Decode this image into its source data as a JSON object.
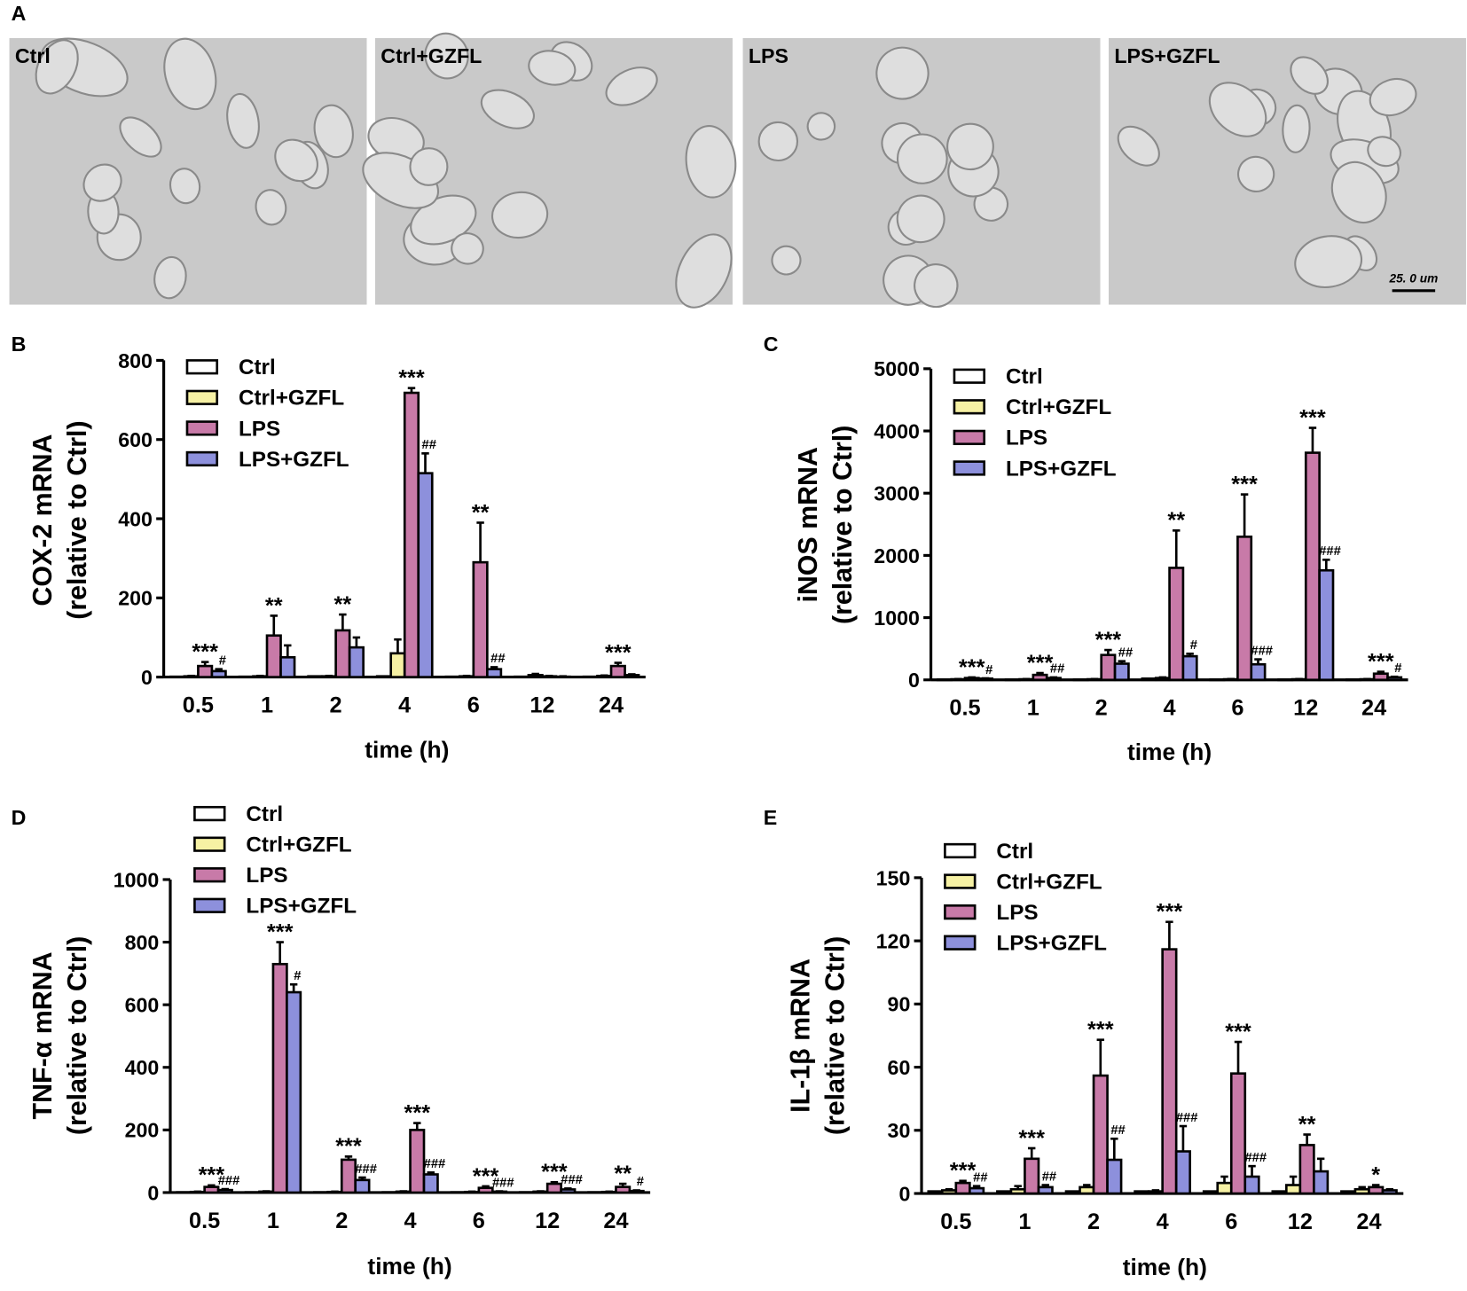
{
  "panel_labels": [
    "A",
    "B",
    "C",
    "D",
    "E"
  ],
  "images": [
    {
      "label": "Ctrl"
    },
    {
      "label": "Ctrl+GZFL"
    },
    {
      "label": "LPS"
    },
    {
      "label": "LPS+GZFL"
    }
  ],
  "scale_bar": "25. 0 um",
  "chart_data": [
    {
      "type": "bar",
      "ylabel": [
        "COX-2 mRNA",
        "(relative to Ctrl)"
      ],
      "xlabel": "time (h)",
      "categories": [
        "0.5",
        "1",
        "2",
        "4",
        "6",
        "12",
        "24"
      ],
      "ylim": [
        0,
        800
      ],
      "yticks": [
        0,
        200,
        400,
        600,
        800
      ],
      "series": [
        {
          "name": "Ctrl",
          "color": "#ffffff",
          "values": [
            1,
            1,
            2,
            2,
            1,
            1,
            1
          ],
          "errors": [
            0,
            0,
            0,
            0,
            0,
            0,
            0
          ],
          "significance": [
            null,
            null,
            null,
            null,
            null,
            null,
            null
          ]
        },
        {
          "name": "Ctrl+GZFL",
          "color": "#f6f1a4",
          "values": [
            2,
            2,
            2,
            60,
            2,
            5,
            3
          ],
          "errors": [
            1,
            1,
            1,
            35,
            1,
            3,
            1
          ],
          "significance": [
            null,
            null,
            null,
            null,
            null,
            null,
            null
          ]
        },
        {
          "name": "LPS",
          "color": "#c87aa8",
          "values": [
            28,
            105,
            118,
            718,
            290,
            2,
            28
          ],
          "errors": [
            10,
            50,
            40,
            12,
            100,
            1,
            8
          ],
          "significance": [
            "***",
            "**",
            "**",
            "***",
            "**",
            null,
            "***"
          ]
        },
        {
          "name": "LPS+GZFL",
          "color": "#8d90dc",
          "values": [
            15,
            50,
            75,
            515,
            20,
            1,
            5
          ],
          "errors": [
            5,
            30,
            25,
            50,
            5,
            1,
            2
          ],
          "significance": [
            "#",
            null,
            null,
            "##",
            "##",
            null,
            null
          ]
        }
      ]
    },
    {
      "type": "bar",
      "ylabel": [
        "iNOS mRNA",
        "(relative to Ctrl)"
      ],
      "xlabel": "time (h)",
      "categories": [
        "0.5",
        "1",
        "2",
        "4",
        "6",
        "12",
        "24"
      ],
      "ylim": [
        0,
        5000
      ],
      "yticks": [
        0,
        1000,
        2000,
        3000,
        4000,
        5000
      ],
      "series": [
        {
          "name": "Ctrl",
          "color": "#ffffff",
          "values": [
            5,
            5,
            5,
            20,
            5,
            5,
            5
          ],
          "errors": [
            0,
            0,
            0,
            0,
            0,
            0,
            0
          ],
          "significance": [
            null,
            null,
            null,
            null,
            null,
            null,
            null
          ]
        },
        {
          "name": "Ctrl+GZFL",
          "color": "#f6f1a4",
          "values": [
            10,
            10,
            10,
            30,
            10,
            10,
            10
          ],
          "errors": [
            3,
            3,
            3,
            10,
            3,
            3,
            3
          ],
          "significance": [
            null,
            null,
            null,
            null,
            null,
            null,
            null
          ]
        },
        {
          "name": "LPS",
          "color": "#c87aa8",
          "values": [
            30,
            80,
            400,
            1800,
            2300,
            3650,
            100
          ],
          "errors": [
            10,
            30,
            80,
            600,
            680,
            400,
            30
          ],
          "significance": [
            "***",
            "***",
            "***",
            "**",
            "***",
            "***",
            "***"
          ]
        },
        {
          "name": "LPS+GZFL",
          "color": "#8d90dc",
          "values": [
            20,
            30,
            260,
            380,
            250,
            1760,
            40
          ],
          "errors": [
            5,
            10,
            40,
            40,
            80,
            170,
            10
          ],
          "significance": [
            "#",
            "##",
            "##",
            "#",
            "###",
            "###",
            "#"
          ]
        }
      ]
    },
    {
      "type": "bar",
      "ylabel": [
        "TNF-α mRNA",
        "(relative to Ctrl)"
      ],
      "xlabel": "time (h)",
      "categories": [
        "0.5",
        "1",
        "2",
        "4",
        "6",
        "12",
        "24"
      ],
      "ylim": [
        0,
        1000
      ],
      "yticks": [
        0,
        200,
        400,
        600,
        800,
        1000
      ],
      "series": [
        {
          "name": "Ctrl",
          "color": "#ffffff",
          "values": [
            1,
            1,
            1,
            1,
            1,
            1,
            1
          ],
          "errors": [
            0,
            0,
            0,
            0,
            0,
            0,
            0
          ],
          "significance": [
            null,
            null,
            null,
            null,
            null,
            null,
            null
          ]
        },
        {
          "name": "Ctrl+GZFL",
          "color": "#f6f1a4",
          "values": [
            2,
            3,
            2,
            3,
            2,
            3,
            2
          ],
          "errors": [
            1,
            1,
            1,
            1,
            1,
            1,
            1
          ],
          "significance": [
            null,
            null,
            null,
            null,
            null,
            null,
            null
          ]
        },
        {
          "name": "LPS",
          "color": "#c87aa8",
          "values": [
            18,
            730,
            105,
            200,
            15,
            28,
            18
          ],
          "errors": [
            5,
            70,
            10,
            22,
            5,
            5,
            10
          ],
          "significance": [
            "***",
            "***",
            "***",
            "***",
            "***",
            "***",
            "**"
          ]
        },
        {
          "name": "LPS+GZFL",
          "color": "#8d90dc",
          "values": [
            8,
            640,
            40,
            58,
            3,
            10,
            5
          ],
          "errors": [
            3,
            25,
            8,
            6,
            1,
            3,
            2
          ],
          "significance": [
            "###",
            "#",
            "###",
            "###",
            "###",
            "###",
            "#"
          ]
        }
      ]
    },
    {
      "type": "bar",
      "ylabel": [
        "IL-1β mRNA",
        "(relative to Ctrl)"
      ],
      "xlabel": "time (h)",
      "categories": [
        "0.5",
        "1",
        "2",
        "4",
        "6",
        "12",
        "24"
      ],
      "ylim": [
        0,
        150
      ],
      "yticks": [
        0,
        30,
        60,
        90,
        120,
        150
      ],
      "series": [
        {
          "name": "Ctrl",
          "color": "#ffffff",
          "values": [
            1,
            1,
            1,
            1,
            1,
            1,
            1
          ],
          "errors": [
            0,
            0,
            0,
            0,
            0,
            0,
            0
          ],
          "significance": [
            null,
            null,
            null,
            null,
            null,
            null,
            null
          ]
        },
        {
          "name": "Ctrl+GZFL",
          "color": "#f6f1a4",
          "values": [
            1.5,
            2,
            3,
            1,
            5,
            4,
            2
          ],
          "errors": [
            0.5,
            1.5,
            1,
            0.5,
            3,
            4,
            1
          ],
          "significance": [
            null,
            null,
            null,
            null,
            null,
            null,
            null
          ]
        },
        {
          "name": "LPS",
          "color": "#c87aa8",
          "values": [
            5,
            16.5,
            56,
            116,
            57,
            23,
            3
          ],
          "errors": [
            1,
            5,
            17,
            13,
            15,
            5,
            1
          ],
          "significance": [
            "***",
            "***",
            "***",
            "***",
            "***",
            "**",
            "*"
          ]
        },
        {
          "name": "LPS+GZFL",
          "color": "#8d90dc",
          "values": [
            2.5,
            3,
            16,
            20,
            8,
            10.5,
            1.5
          ],
          "errors": [
            1,
            1,
            10,
            12,
            5,
            6,
            0.5
          ],
          "significance": [
            "##",
            "##",
            "##",
            "###",
            "###",
            null,
            null
          ]
        }
      ]
    }
  ]
}
